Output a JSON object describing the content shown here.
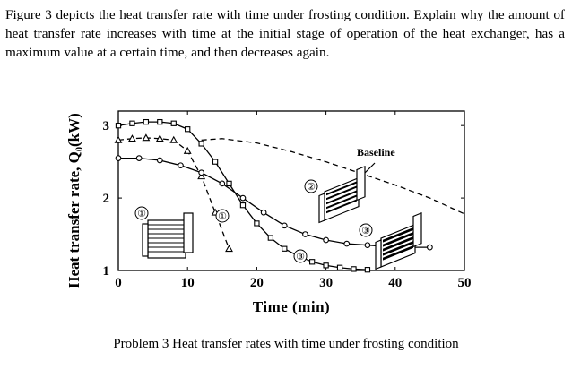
{
  "question": {
    "text": "Figure 3 depicts the heat transfer rate with time under frosting condition. Explain why the amount of heat transfer rate increases with time at the initial stage of operation of the heat exchanger, has a maximum value at a certain time, and then decreases again."
  },
  "caption": {
    "text": "Problem 3 Heat transfer rates with time under frosting condition"
  },
  "chart_data": {
    "type": "line",
    "xlabel": "Time (min)",
    "ylabel": "Heat transfer rate, Q₀(kW)",
    "x_ticks": [
      "0",
      "10",
      "20",
      "30",
      "40",
      "50"
    ],
    "y_ticks": [
      "1",
      "2",
      "3"
    ],
    "xlim": [
      0,
      50
    ],
    "ylim": [
      1,
      3.2
    ],
    "annotations": [
      "Baseline",
      "①",
      "②",
      "③",
      "①",
      "③"
    ],
    "series": [
      {
        "marker": "square",
        "style": "solid",
        "x": [
          0,
          2,
          4,
          6,
          8,
          10,
          12,
          14,
          16,
          18,
          20,
          22,
          24,
          26,
          28,
          30,
          32,
          34,
          36
        ],
        "y": [
          3.0,
          3.03,
          3.05,
          3.05,
          3.03,
          2.95,
          2.75,
          2.5,
          2.2,
          1.9,
          1.65,
          1.45,
          1.3,
          1.2,
          1.12,
          1.07,
          1.04,
          1.02,
          1.01
        ]
      },
      {
        "marker": "triangle",
        "style": "dashed",
        "x": [
          0,
          2,
          4,
          6,
          8,
          10,
          12,
          14,
          16
        ],
        "y": [
          2.8,
          2.82,
          2.83,
          2.82,
          2.8,
          2.65,
          2.3,
          1.8,
          1.3
        ]
      },
      {
        "marker": "circle",
        "style": "solid",
        "x": [
          0,
          3,
          6,
          9,
          12,
          15,
          18,
          21,
          24,
          27,
          30,
          33,
          36,
          39,
          42,
          45
        ],
        "y": [
          2.55,
          2.55,
          2.52,
          2.45,
          2.35,
          2.2,
          2.0,
          1.8,
          1.62,
          1.5,
          1.42,
          1.37,
          1.35,
          1.33,
          1.32,
          1.32
        ]
      },
      {
        "name": "Baseline",
        "marker": "none",
        "style": "dashed",
        "x": [
          12,
          15,
          20,
          25,
          30,
          35,
          40,
          45,
          50
        ],
        "y": [
          2.8,
          2.82,
          2.76,
          2.64,
          2.5,
          2.34,
          2.18,
          2.0,
          1.78
        ]
      }
    ]
  }
}
